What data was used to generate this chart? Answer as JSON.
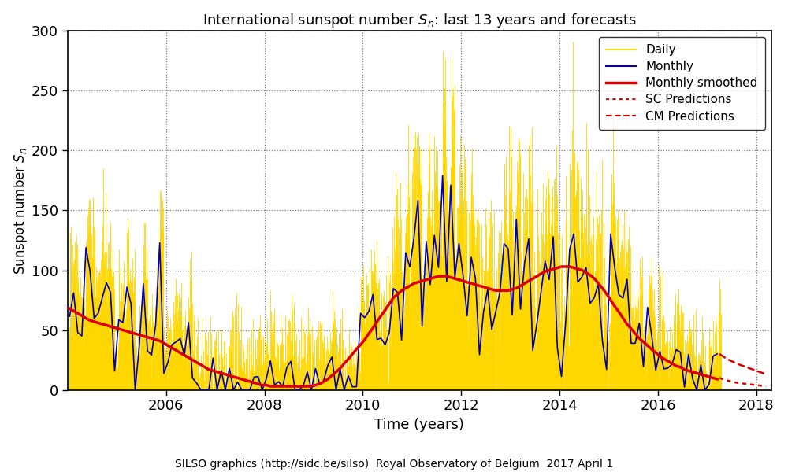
{
  "title": "International sunspot number $S_{n}$: last 13 years and forecasts",
  "xlabel": "Time (years)",
  "ylabel": "Sunspot number $S_{n}$",
  "footer": "SILSO graphics (http://sidc.be/silso)  Royal Observatory of Belgium  2017 April 1",
  "xlim": [
    2004.0,
    2018.3
  ],
  "ylim": [
    0,
    300
  ],
  "yticks": [
    0,
    50,
    100,
    150,
    200,
    250,
    300
  ],
  "xticks": [
    2006,
    2008,
    2010,
    2012,
    2014,
    2016,
    2018
  ],
  "colors": {
    "daily": "#FFD700",
    "monthly": "#0000BB",
    "smoothed": "#DD0000",
    "pred": "#DD0000",
    "grid": "#777777",
    "background": "#FFFFFF"
  },
  "smoothed_data": {
    "years": [
      2004.04,
      2004.12,
      2004.21,
      2004.29,
      2004.37,
      2004.46,
      2004.54,
      2004.62,
      2004.71,
      2004.79,
      2004.87,
      2004.96,
      2005.04,
      2005.12,
      2005.21,
      2005.29,
      2005.37,
      2005.46,
      2005.54,
      2005.62,
      2005.71,
      2005.79,
      2005.87,
      2005.96,
      2006.04,
      2006.12,
      2006.21,
      2006.29,
      2006.37,
      2006.46,
      2006.54,
      2006.62,
      2006.71,
      2006.79,
      2006.87,
      2006.96,
      2007.04,
      2007.12,
      2007.21,
      2007.29,
      2007.37,
      2007.46,
      2007.54,
      2007.62,
      2007.71,
      2007.79,
      2007.87,
      2007.96,
      2008.04,
      2008.12,
      2008.21,
      2008.29,
      2008.37,
      2008.46,
      2008.54,
      2008.62,
      2008.71,
      2008.79,
      2008.87,
      2008.96,
      2009.04,
      2009.12,
      2009.21,
      2009.29,
      2009.37,
      2009.46,
      2009.54,
      2009.62,
      2009.71,
      2009.79,
      2009.87,
      2009.96,
      2010.04,
      2010.12,
      2010.21,
      2010.29,
      2010.37,
      2010.46,
      2010.54,
      2010.62,
      2010.71,
      2010.79,
      2010.87,
      2010.96,
      2011.04,
      2011.12,
      2011.21,
      2011.29,
      2011.37,
      2011.46,
      2011.54,
      2011.62,
      2011.71,
      2011.79,
      2011.87,
      2011.96,
      2012.04,
      2012.12,
      2012.21,
      2012.29,
      2012.37,
      2012.46,
      2012.54,
      2012.62,
      2012.71,
      2012.79,
      2012.87,
      2012.96,
      2013.04,
      2013.12,
      2013.21,
      2013.29,
      2013.37,
      2013.46,
      2013.54,
      2013.62,
      2013.71,
      2013.79,
      2013.87,
      2013.96,
      2014.04,
      2014.12,
      2014.21,
      2014.29,
      2014.37,
      2014.46,
      2014.54,
      2014.62,
      2014.71,
      2014.79,
      2014.87,
      2014.96,
      2015.04,
      2015.12,
      2015.21,
      2015.29,
      2015.37,
      2015.46,
      2015.54,
      2015.62,
      2015.71,
      2015.79,
      2015.87,
      2015.96,
      2016.04,
      2016.12,
      2016.21,
      2016.29,
      2016.37,
      2016.46,
      2016.54,
      2016.62,
      2016.71,
      2016.79,
      2016.87,
      2016.96,
      2017.04,
      2017.12,
      2017.21,
      2017.29
    ],
    "values": [
      68,
      66,
      64,
      62,
      60,
      58,
      57,
      56,
      55,
      54,
      53,
      52,
      51,
      50,
      49,
      48,
      47,
      46,
      45,
      44,
      43,
      42,
      41,
      39,
      37,
      35,
      33,
      31,
      29,
      27,
      25,
      23,
      21,
      19,
      17,
      16,
      15,
      14,
      13,
      12,
      11,
      10,
      9,
      8,
      7,
      6,
      5,
      4,
      4,
      3,
      3,
      3,
      3,
      3,
      3,
      3,
      3,
      3,
      3,
      3,
      4,
      5,
      7,
      9,
      12,
      15,
      18,
      22,
      26,
      30,
      34,
      38,
      42,
      47,
      52,
      57,
      62,
      67,
      72,
      77,
      80,
      83,
      85,
      87,
      89,
      90,
      91,
      92,
      93,
      94,
      95,
      95,
      95,
      94,
      93,
      92,
      91,
      90,
      89,
      88,
      87,
      86,
      85,
      84,
      83,
      83,
      83,
      83,
      84,
      85,
      87,
      89,
      91,
      93,
      95,
      97,
      99,
      100,
      101,
      102,
      103,
      103,
      103,
      102,
      101,
      100,
      98,
      96,
      93,
      89,
      85,
      80,
      75,
      70,
      65,
      60,
      55,
      51,
      47,
      43,
      40,
      37,
      34,
      31,
      28,
      26,
      24,
      22,
      20,
      19,
      17,
      16,
      15,
      14,
      13,
      12,
      11,
      10,
      9,
      8
    ]
  }
}
